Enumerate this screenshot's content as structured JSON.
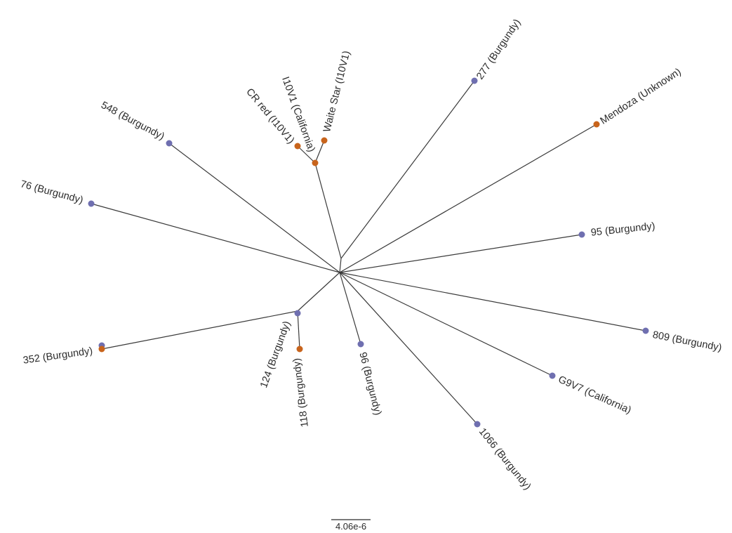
{
  "colors": {
    "burgundy_node": "#6f6fb0",
    "other_node": "#c8641c",
    "branch": "#3a3a3a"
  },
  "tree": {
    "tips": [
      {
        "id": "t277",
        "label": "277 (Burgundy)",
        "group": "burgundy"
      },
      {
        "id": "tMendoza",
        "label": "Mendoza (Unknown)",
        "group": "other"
      },
      {
        "id": "t95",
        "label": "95 (Burgundy)",
        "group": "burgundy"
      },
      {
        "id": "t809",
        "label": "809 (Burgundy)",
        "group": "burgundy"
      },
      {
        "id": "tG9V7",
        "label": "G9V7 (California)",
        "group": "burgundy"
      },
      {
        "id": "t1066",
        "label": "1066 (Burgundy)",
        "group": "burgundy"
      },
      {
        "id": "t96",
        "label": "96 (Burgundy)",
        "group": "burgundy"
      },
      {
        "id": "t118",
        "label": "118 (Burgundy)",
        "group": "other"
      },
      {
        "id": "t124",
        "label": "124 (Burgundy)",
        "group": "burgundy"
      },
      {
        "id": "t352",
        "label": "352 (Burgundy)",
        "group": "other"
      },
      {
        "id": "t76",
        "label": "76 (Burgundy)",
        "group": "burgundy"
      },
      {
        "id": "t548",
        "label": "548 (Burgundy)",
        "group": "burgundy"
      },
      {
        "id": "tCR",
        "label": "CR red (I10V1)",
        "group": "other"
      },
      {
        "id": "tI10V1",
        "label": "I10V1 (California)",
        "group": "other"
      },
      {
        "id": "tWaite",
        "label": "Waite Star (I10V1)",
        "group": "other"
      }
    ],
    "scale_bar_label": "4.06e-6"
  }
}
